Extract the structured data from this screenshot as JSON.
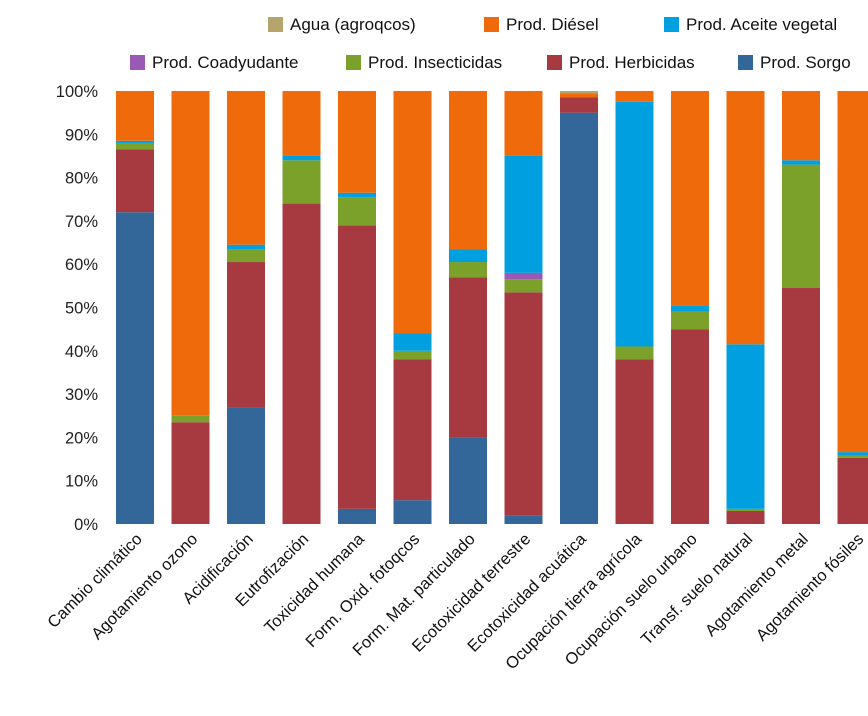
{
  "chart_data": {
    "type": "bar",
    "stacked": true,
    "normalized": true,
    "ylim": [
      0,
      100
    ],
    "yticks": [
      "0%",
      "10%",
      "20%",
      "30%",
      "40%",
      "50%",
      "60%",
      "70%",
      "80%",
      "90%",
      "100%"
    ],
    "grid": false,
    "legend_position": "top",
    "categories": [
      "Cambio climático",
      "Agotamiento ozono",
      "Acidificación",
      "Eutrofización",
      "Toxicidad humana",
      "Form. Oxid. fotoqcos",
      "Form. Mat. particulado",
      "Ecotoxicidad terrestre",
      "Ecotoxicidad acuática",
      "Ocupación tierra agrícola",
      "Ocupación suelo urbano",
      "Transf. suelo natural",
      "Agotamiento metal",
      "Agotamiento fósiles"
    ],
    "series": [
      {
        "name": "Prod. Sorgo",
        "color": "#336699",
        "values": [
          72,
          0,
          27,
          0,
          3.5,
          5.5,
          20,
          2,
          95,
          0,
          0,
          0,
          0,
          0
        ]
      },
      {
        "name": "Prod. Herbicidas",
        "color": "#A63A40",
        "values": [
          14.5,
          23.5,
          33.5,
          74,
          65.5,
          32.5,
          37,
          51.5,
          3.5,
          38,
          45,
          3,
          54.5,
          15.3
        ]
      },
      {
        "name": "Prod. Insecticidas",
        "color": "#7BA12B",
        "values": [
          1.5,
          1.5,
          3,
          10,
          6.5,
          2,
          3.5,
          3,
          0,
          3,
          4,
          0.5,
          28.5,
          0.5
        ]
      },
      {
        "name": "Prod. Coadyudante",
        "color": "#9B59B6",
        "values": [
          0,
          0,
          0,
          0,
          0,
          0,
          0,
          1.5,
          0,
          0,
          0,
          0,
          0,
          0
        ]
      },
      {
        "name": "Prod. Aceite vegetal",
        "color": "#00A0E0",
        "values": [
          0.5,
          0,
          1,
          1,
          1,
          4,
          3,
          27,
          0,
          56.5,
          1.5,
          38,
          1,
          0.8
        ]
      },
      {
        "name": "Prod. Diésel",
        "color": "#EE6A0B",
        "values": [
          11.5,
          75,
          35.5,
          15,
          23.5,
          56,
          36.5,
          15,
          1,
          2.5,
          49.5,
          58.5,
          16,
          83.4
        ]
      },
      {
        "name": "Agua (agroqcos)",
        "color": "#B5A56A",
        "values": [
          0,
          0,
          0,
          0,
          0,
          0,
          0,
          0,
          0.5,
          0,
          0,
          0,
          0,
          0
        ]
      }
    ],
    "legend_rows": [
      [
        "Agua (agroqcos)",
        "Prod. Diésel",
        "Prod. Aceite vegetal"
      ],
      [
        "Prod. Coadyudante",
        "Prod. Insecticidas",
        "Prod. Herbicidas",
        "Prod. Sorgo"
      ]
    ]
  }
}
